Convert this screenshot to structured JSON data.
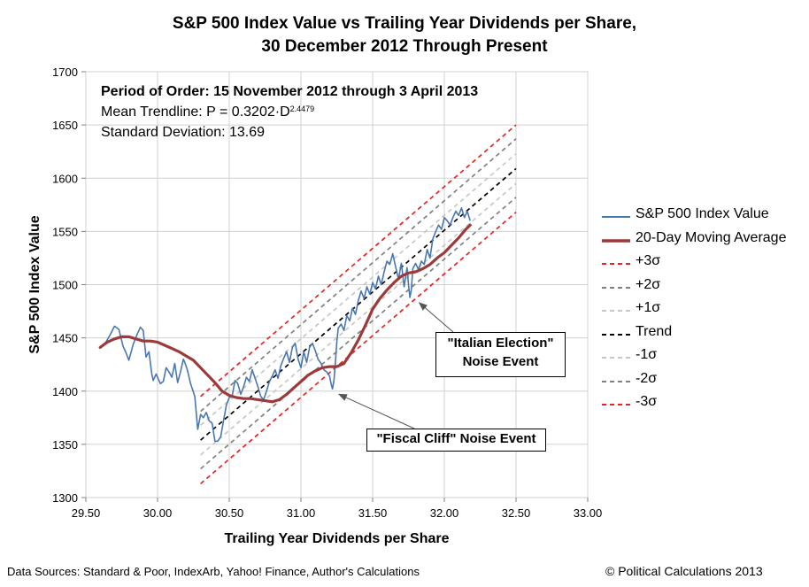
{
  "title": {
    "line1": "S&P 500 Index Value vs Trailing Year Dividends per Share,",
    "line2": "30 December 2012 Through Present"
  },
  "annotations": {
    "period": "Period of Order: 15 November 2012 through 3 April 2013",
    "trend_prefix": "Mean Trendline: P = 0.3202·D",
    "trend_exponent": "2.4479",
    "stdev": "Standard Deviation: 13.69"
  },
  "callouts": {
    "italy_line1": "\"Italian Election\"",
    "italy_line2": "Noise Event",
    "cliff": "\"Fiscal Cliff\" Noise Event"
  },
  "legend": {
    "items": [
      {
        "label": "S&P 500 Index Value",
        "color": "#4a77b0",
        "style": "solid-thin"
      },
      {
        "label": "20-Day Moving Average",
        "color": "#9c3a3a",
        "style": "solid-thick"
      },
      {
        "label": "+3σ",
        "color": "#e8231f",
        "style": "dash"
      },
      {
        "label": "+2σ",
        "color": "#808080",
        "style": "dash"
      },
      {
        "label": "+1σ",
        "color": "#c8c8c8",
        "style": "dash"
      },
      {
        "label": "Trend",
        "color": "#000000",
        "style": "dash"
      },
      {
        "label": "-1σ",
        "color": "#c8c8c8",
        "style": "dash"
      },
      {
        "label": "-2σ",
        "color": "#808080",
        "style": "dash"
      },
      {
        "label": "-3σ",
        "color": "#e8231f",
        "style": "dash"
      }
    ]
  },
  "footer": {
    "sources": "Data Sources: Standard & Poor, IndexArb, Yahoo! Finance, Author's Calculations",
    "copyright": "© Political Calculations 2013"
  },
  "chart_data": {
    "type": "line",
    "title": "S&P 500 Index Value vs Trailing Year Dividends per Share, 30 December 2012 Through Present",
    "xlabel": "Trailing Year Dividends per Share",
    "ylabel": "S&P 500 Index Value",
    "xlim": [
      29.5,
      33.0
    ],
    "ylim": [
      1300,
      1700
    ],
    "x_ticks": [
      "29.50",
      "30.00",
      "30.50",
      "31.00",
      "31.50",
      "32.00",
      "32.50",
      "33.00"
    ],
    "y_ticks": [
      "1300",
      "1350",
      "1400",
      "1450",
      "1500",
      "1550",
      "1600",
      "1650",
      "1700"
    ],
    "grid": true,
    "legend_position": "right",
    "series": [
      {
        "name": "S&P 500 Index Value",
        "color": "#4a77b0",
        "x": [
          29.6,
          29.64,
          29.67,
          29.7,
          29.73,
          29.76,
          29.78,
          29.8,
          29.83,
          29.86,
          29.88,
          29.9,
          29.92,
          29.94,
          29.96,
          29.97,
          29.99,
          30.02,
          30.04,
          30.06,
          30.08,
          30.1,
          30.12,
          30.14,
          30.16,
          30.18,
          30.19,
          30.21,
          30.23,
          30.26,
          30.28,
          30.3,
          30.32,
          30.34,
          30.36,
          30.38,
          30.4,
          30.42,
          30.44,
          30.46,
          30.48,
          30.5,
          30.52,
          30.54,
          30.56,
          30.58,
          30.6,
          30.62,
          30.64,
          30.66,
          30.68,
          30.7,
          30.72,
          30.74,
          30.76,
          30.78,
          30.8,
          30.82,
          30.84,
          30.86,
          30.88,
          30.9,
          30.92,
          30.94,
          30.96,
          30.98,
          31.0,
          31.02,
          31.04,
          31.06,
          31.08,
          31.1,
          31.12,
          31.14,
          31.16,
          31.18,
          31.2,
          31.21,
          31.22,
          31.23,
          31.24,
          31.25,
          31.26,
          31.28,
          31.3,
          31.32,
          31.34,
          31.36,
          31.38,
          31.4,
          31.42,
          31.44,
          31.46,
          31.48,
          31.5,
          31.52,
          31.54,
          31.56,
          31.58,
          31.6,
          31.62,
          31.64,
          31.66,
          31.68,
          31.7,
          31.72,
          31.74,
          31.75,
          31.76,
          31.77,
          31.78,
          31.8,
          31.82,
          31.84,
          31.86,
          31.88,
          31.9,
          31.92,
          31.94,
          31.96,
          31.98,
          32.0,
          32.02,
          32.04,
          32.06,
          32.08,
          32.1,
          32.12,
          32.14,
          32.16,
          32.18
        ],
        "y": [
          1441,
          1446,
          1453,
          1461,
          1458,
          1442,
          1436,
          1429,
          1444,
          1454,
          1460,
          1457,
          1432,
          1437,
          1416,
          1410,
          1416,
          1407,
          1409,
          1422,
          1418,
          1413,
          1426,
          1408,
          1418,
          1430,
          1427,
          1419,
          1407,
          1395,
          1364,
          1378,
          1375,
          1380,
          1372,
          1370,
          1353,
          1353,
          1357,
          1372,
          1387,
          1394,
          1395,
          1410,
          1407,
          1397,
          1404,
          1413,
          1409,
          1420,
          1412,
          1404,
          1395,
          1392,
          1400,
          1409,
          1414,
          1420,
          1412,
          1424,
          1431,
          1437,
          1427,
          1441,
          1445,
          1430,
          1422,
          1437,
          1427,
          1441,
          1445,
          1438,
          1430,
          1426,
          1420,
          1418,
          1414,
          1407,
          1402,
          1410,
          1426,
          1446,
          1459,
          1463,
          1457,
          1471,
          1466,
          1478,
          1472,
          1485,
          1494,
          1487,
          1498,
          1491,
          1502,
          1496,
          1508,
          1500,
          1512,
          1522,
          1519,
          1529,
          1517,
          1505,
          1520,
          1498,
          1516,
          1500,
          1488,
          1495,
          1515,
          1520,
          1514,
          1522,
          1519,
          1533,
          1525,
          1543,
          1550,
          1556,
          1552,
          1563,
          1560,
          1556,
          1563,
          1569,
          1565,
          1572,
          1563,
          1569,
          1560
        ]
      },
      {
        "name": "20-Day Moving Average",
        "color": "#9c3a3a",
        "x": [
          29.6,
          29.65,
          29.7,
          29.75,
          29.8,
          29.85,
          29.9,
          29.95,
          30.0,
          30.05,
          30.1,
          30.15,
          30.2,
          30.25,
          30.3,
          30.35,
          30.4,
          30.45,
          30.5,
          30.55,
          30.6,
          30.65,
          30.7,
          30.75,
          30.8,
          30.85,
          30.9,
          30.95,
          31.0,
          31.05,
          31.1,
          31.15,
          31.2,
          31.25,
          31.3,
          31.35,
          31.4,
          31.45,
          31.5,
          31.55,
          31.6,
          31.65,
          31.7,
          31.75,
          31.8,
          31.85,
          31.9,
          31.95,
          32.0,
          32.05,
          32.1,
          32.15,
          32.18
        ],
        "y": [
          1441,
          1446,
          1449,
          1451,
          1451,
          1449,
          1447,
          1447,
          1446,
          1443,
          1440,
          1437,
          1433,
          1429,
          1422,
          1415,
          1408,
          1400,
          1396,
          1394,
          1393,
          1393,
          1392,
          1391,
          1390,
          1392,
          1397,
          1403,
          1409,
          1415,
          1419,
          1422,
          1423,
          1423,
          1426,
          1436,
          1448,
          1462,
          1477,
          1487,
          1495,
          1502,
          1508,
          1511,
          1512,
          1515,
          1519,
          1525,
          1530,
          1537,
          1544,
          1552,
          1556
        ]
      },
      {
        "name": "+3σ",
        "color": "#e8231f",
        "x": [
          30.3,
          32.5
        ],
        "y": [
          1395,
          1650
        ]
      },
      {
        "name": "+2σ",
        "color": "#808080",
        "x": [
          30.3,
          32.5
        ],
        "y": [
          1381,
          1637
        ]
      },
      {
        "name": "+1σ",
        "color": "#c8c8c8",
        "x": [
          30.3,
          32.5
        ],
        "y": [
          1368,
          1623
        ]
      },
      {
        "name": "Trend",
        "color": "#000000",
        "x": [
          30.3,
          32.5
        ],
        "y": [
          1354,
          1609
        ]
      },
      {
        "name": "-1σ",
        "color": "#c8c8c8",
        "x": [
          30.3,
          32.5
        ],
        "y": [
          1340,
          1595
        ]
      },
      {
        "name": "-2σ",
        "color": "#808080",
        "x": [
          30.3,
          32.5
        ],
        "y": [
          1327,
          1582
        ]
      },
      {
        "name": "-3σ",
        "color": "#e8231f",
        "x": [
          30.3,
          32.5
        ],
        "y": [
          1313,
          1568
        ]
      }
    ],
    "annotation_targets": [
      {
        "label": "\"Italian Election\" Noise Event",
        "x": 31.8,
        "y": 1488
      },
      {
        "label": "\"Fiscal Cliff\" Noise Event",
        "x": 31.24,
        "y": 1402
      }
    ]
  }
}
